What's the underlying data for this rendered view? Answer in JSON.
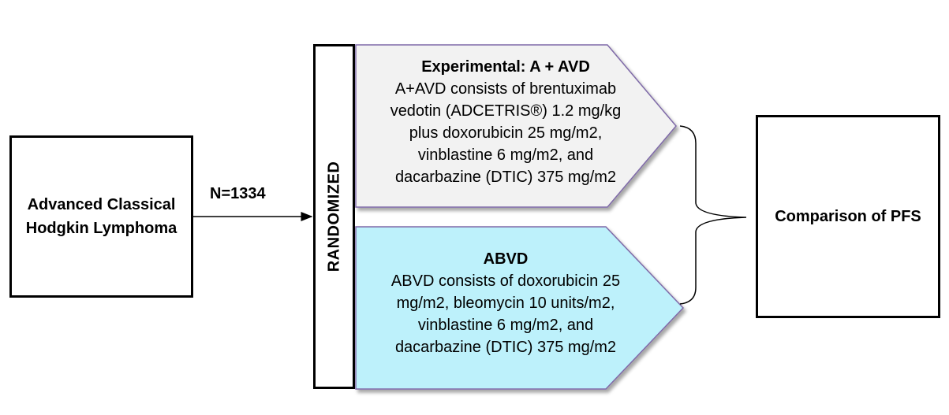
{
  "population": "Advanced Classical Hodgkin Lymphoma",
  "sample_size": "N=1334",
  "randomization": "RANDOMIZED",
  "arms": [
    {
      "title": "Experimental: A + AVD",
      "lines": [
        "A+AVD consists of brentuximab",
        "vedotin (ADCETRIS®) 1.2 mg/kg",
        "plus doxorubicin 25 mg/m2,",
        "vinblastine 6 mg/m2, and",
        "dacarbazine (DTIC) 375 mg/m2"
      ],
      "fill_color": "#f2f2f2",
      "border_color": "#7f6aa8"
    },
    {
      "title": "ABVD",
      "lines": [
        "ABVD consists of doxorubicin 25",
        "mg/m2, bleomycin 10 units/m2,",
        "vinblastine 6 mg/m2, and",
        "dacarbazine (DTIC) 375 mg/m2"
      ],
      "fill_color": "#bdf1fb",
      "border_color": "#7f6aa8"
    }
  ],
  "outcome": "Comparison of PFS"
}
